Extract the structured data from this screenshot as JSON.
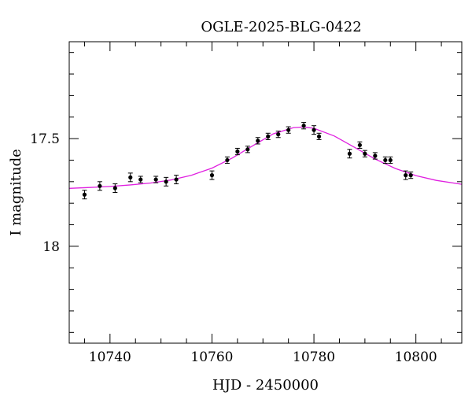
{
  "chart_data": {
    "type": "scatter",
    "title": "OGLE-2025-BLG-0422",
    "xlabel": "HJD - 2450000",
    "ylabel": "I magnitude",
    "xlim": [
      10732,
      10809
    ],
    "ylim": [
      18.45,
      17.05
    ],
    "y_inverted": true,
    "x_major_ticks": [
      10740,
      10760,
      10780,
      10800
    ],
    "x_minor_step": 5,
    "y_major_ticks": [
      17.5,
      18
    ],
    "y_major_tick_labels": [
      "17.5",
      "18"
    ],
    "y_minor_step": 0.1,
    "grid": false,
    "legend": "none",
    "colors": {
      "points": "#000000",
      "model": "#e020e0",
      "axes": "#000000"
    },
    "series": [
      {
        "type": "scatter_errorbar",
        "x": [
          10735,
          10738,
          10741,
          10744,
          10746,
          10749,
          10751,
          10753,
          10760,
          10763,
          10765,
          10767,
          10769,
          10771,
          10773,
          10775,
          10778,
          10780,
          10781,
          10787,
          10789,
          10790,
          10792,
          10794,
          10795,
          10798,
          10799
        ],
        "y": [
          17.76,
          17.72,
          17.73,
          17.68,
          17.69,
          17.69,
          17.7,
          17.69,
          17.67,
          17.6,
          17.56,
          17.55,
          17.51,
          17.49,
          17.48,
          17.46,
          17.44,
          17.46,
          17.49,
          17.57,
          17.53,
          17.57,
          17.58,
          17.6,
          17.6,
          17.67,
          17.67
        ],
        "yerr": [
          0.02,
          0.02,
          0.02,
          0.02,
          0.015,
          0.015,
          0.02,
          0.02,
          0.02,
          0.015,
          0.015,
          0.015,
          0.015,
          0.015,
          0.015,
          0.015,
          0.015,
          0.02,
          0.015,
          0.02,
          0.015,
          0.015,
          0.015,
          0.015,
          0.015,
          0.02,
          0.015
        ]
      },
      {
        "type": "line",
        "x": [
          10732,
          10736,
          10740,
          10744,
          10748,
          10752,
          10756,
          10760,
          10764,
          10768,
          10772,
          10776,
          10778,
          10780,
          10784,
          10788,
          10792,
          10796,
          10800,
          10804,
          10809
        ],
        "y": [
          17.731,
          17.727,
          17.722,
          17.715,
          17.706,
          17.692,
          17.67,
          17.637,
          17.59,
          17.533,
          17.478,
          17.449,
          17.446,
          17.452,
          17.488,
          17.541,
          17.595,
          17.639,
          17.672,
          17.694,
          17.712
        ]
      }
    ]
  }
}
